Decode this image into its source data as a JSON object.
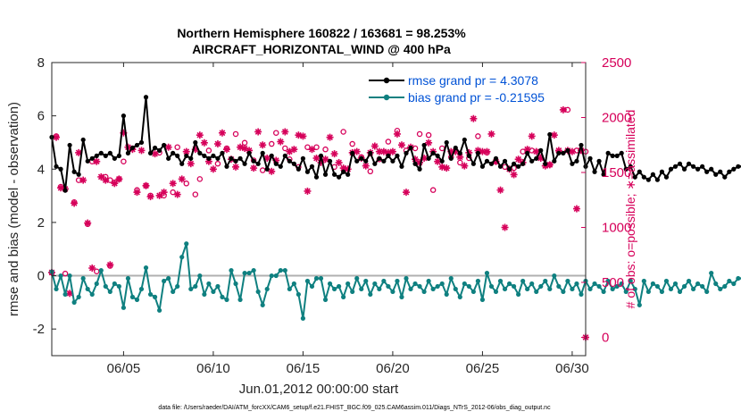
{
  "colors": {
    "rmse": "#000000",
    "bias": "#0f8080",
    "obs": "#d6005a",
    "legend_text": "#0052d6",
    "zero_line": "#b0b0b0"
  },
  "chart_data": {
    "type": "line",
    "title_line1": "Northern Hemisphere 160822 / 163681 = 98.253%",
    "title_line2": "AIRCRAFT_HORIZONTAL_WIND @ 400 hPa",
    "xlabel": "Jun.01,2012 00:00:00 start",
    "ylabel": "rmse and bias (model - observation)",
    "ylabel_right": "# of obs: o=possible; ∗=assimilated",
    "xlim": [
      1,
      30.75
    ],
    "ylim": [
      -3,
      8
    ],
    "ylim_right": [
      -166.7,
      2500
    ],
    "x_ticks": [
      5,
      10,
      15,
      20,
      25,
      30
    ],
    "x_tick_labels": [
      "06/05",
      "06/10",
      "06/15",
      "06/20",
      "06/25",
      "06/30"
    ],
    "y_ticks": [
      -2,
      0,
      2,
      4,
      6,
      8
    ],
    "y_tick_labels": [
      "-2",
      "0",
      "2",
      "4",
      "6",
      "8"
    ],
    "y_right_ticks": [
      0,
      500,
      1000,
      1500,
      2000,
      2500
    ],
    "y_right_tick_labels": [
      "0",
      "500",
      "1000",
      "1500",
      "2000",
      "2500"
    ],
    "x_start": 1.0,
    "x_step": 0.25,
    "series": [
      {
        "name": "rmse grand pr = 4.3078",
        "marker": "filled-circle",
        "color": "rmse",
        "values": [
          5.2,
          4.1,
          4.0,
          3.2,
          4.9,
          3.9,
          3.8,
          5.1,
          4.3,
          4.4,
          4.5,
          4.6,
          4.5,
          4.6,
          4.4,
          4.5,
          6.0,
          4.6,
          4.8,
          4.9,
          5.0,
          6.7,
          4.6,
          4.8,
          4.7,
          4.9,
          4.4,
          4.6,
          4.5,
          4.2,
          4.5,
          4.4,
          5.0,
          4.6,
          4.5,
          4.4,
          4.5,
          4.4,
          4.6,
          4.1,
          4.4,
          4.3,
          4.4,
          4.2,
          4.6,
          4.3,
          4.2,
          4.6,
          4.0,
          4.5,
          4.2,
          4.1,
          4.5,
          4.3,
          4.2,
          4.0,
          4.4,
          3.9,
          4.1,
          3.7,
          4.5,
          3.8,
          4.3,
          3.8,
          3.7,
          3.9,
          3.8,
          4.6,
          4.3,
          4.4,
          4.3,
          4.6,
          4.2,
          4.4,
          4.3,
          4.5,
          4.3,
          4.5,
          4.1,
          4.6,
          4.8,
          4.2,
          4.0,
          4.9,
          4.4,
          4.6,
          4.5,
          4.3,
          5.0,
          4.4,
          4.8,
          4.6,
          5.1,
          4.5,
          4.2,
          4.6,
          4.1,
          4.3,
          4.2,
          4.4,
          4.1,
          4.3,
          4.0,
          4.2,
          4.1,
          4.2,
          4.6,
          4.3,
          4.4,
          4.7,
          4.2,
          5.3,
          4.3,
          4.6,
          4.6,
          4.7,
          4.2,
          4.3,
          4.9,
          4.1,
          4.4,
          3.9,
          4.3,
          3.8,
          4.6,
          4.5,
          4.5,
          4.6,
          4.0,
          4.1,
          3.7,
          3.9,
          3.7,
          3.6,
          3.8,
          3.6,
          3.9,
          3.7,
          4.0,
          4.1,
          4.2,
          4.0,
          4.2,
          4.1,
          4.0,
          4.1,
          3.9,
          4.0,
          3.8,
          3.9,
          3.7,
          3.9,
          4.0,
          4.1,
          4.1
        ]
      },
      {
        "name": "bias grand pr = -0.21595",
        "marker": "filled-circle",
        "color": "bias",
        "values": [
          0.15,
          -0.5,
          0.0,
          -0.7,
          0.0,
          -1.0,
          -0.8,
          -0.1,
          -0.5,
          -0.7,
          -0.3,
          0.2,
          -0.4,
          -0.6,
          -0.3,
          -0.4,
          -1.2,
          -0.1,
          -0.8,
          -0.9,
          -0.5,
          0.3,
          -0.7,
          -0.8,
          -1.3,
          -0.2,
          -0.1,
          -0.6,
          -0.4,
          0.7,
          1.2,
          -0.5,
          -0.4,
          0.0,
          -0.7,
          -0.3,
          -0.6,
          -0.4,
          -0.8,
          -0.9,
          0.2,
          -0.3,
          -0.9,
          0.1,
          0.1,
          0.2,
          -0.6,
          -1.1,
          -0.5,
          0.0,
          0.0,
          0.2,
          0.2,
          -0.5,
          -0.3,
          -0.7,
          -1.6,
          -0.2,
          -0.4,
          -0.1,
          -0.1,
          -0.9,
          -0.3,
          -0.5,
          -0.4,
          -0.8,
          -0.3,
          -0.6,
          -0.1,
          -0.5,
          -0.2,
          -0.7,
          -0.3,
          -0.5,
          -0.2,
          -0.4,
          -0.6,
          -0.2,
          -0.8,
          -0.1,
          -0.5,
          -0.3,
          -0.4,
          -0.6,
          -0.2,
          -0.5,
          -0.4,
          -0.3,
          -0.7,
          -0.1,
          -0.5,
          -0.8,
          -0.3,
          -0.4,
          -0.6,
          -0.2,
          -0.9,
          0.1,
          -0.4,
          -0.6,
          -0.2,
          -0.5,
          -0.3,
          -0.4,
          -0.7,
          -0.2,
          -0.5,
          -0.3,
          -0.6,
          -0.4,
          -0.2,
          -0.5,
          0.0,
          -0.4,
          -0.6,
          -0.2,
          -0.5,
          -0.3,
          -0.7,
          -0.2,
          -0.5,
          -0.3,
          -0.4,
          -0.6,
          -0.2,
          -0.5,
          -0.4,
          -0.3,
          -0.6,
          -0.2,
          -0.5,
          -1.1,
          -0.2,
          -0.6,
          -0.3,
          -0.4,
          -0.6,
          -0.2,
          -0.5,
          -0.3,
          -0.6,
          -0.4,
          -0.2,
          -0.5,
          -0.3,
          -0.4,
          -0.6,
          0.1,
          -0.3,
          -0.5,
          -0.4,
          -0.2,
          -0.3,
          -0.1,
          -0.1
        ]
      }
    ],
    "obs_possible": [
      [
        1.0,
        590
      ],
      [
        1.75,
        580
      ],
      [
        1.5,
        1370
      ],
      [
        1.25,
        1830
      ],
      [
        2.25,
        1230
      ],
      [
        2.5,
        1430
      ],
      [
        3.0,
        1030
      ],
      [
        3.5,
        600
      ],
      [
        3.25,
        1600
      ],
      [
        4.0,
        1460
      ],
      [
        4.25,
        1430
      ],
      [
        4.5,
        1410
      ],
      [
        4.75,
        1440
      ],
      [
        4.25,
        650
      ],
      [
        5.0,
        1600
      ],
      [
        5.5,
        1720
      ],
      [
        5.75,
        1340
      ],
      [
        6.25,
        1380
      ],
      [
        6.5,
        1290
      ],
      [
        7.0,
        1680
      ],
      [
        7.25,
        1290
      ],
      [
        7.75,
        1320
      ],
      [
        8.0,
        1730
      ],
      [
        8.5,
        1400
      ],
      [
        9.0,
        1300
      ],
      [
        9.25,
        1440
      ],
      [
        9.75,
        1700
      ],
      [
        10.25,
        1580
      ],
      [
        10.75,
        1720
      ],
      [
        11.25,
        1850
      ],
      [
        11.75,
        1770
      ],
      [
        12.25,
        1610
      ],
      [
        12.75,
        1520
      ],
      [
        13.25,
        1760
      ],
      [
        13.5,
        1860
      ],
      [
        14.0,
        1720
      ],
      [
        14.25,
        1620
      ],
      [
        14.75,
        1550
      ],
      [
        15.25,
        1730
      ],
      [
        15.75,
        1730
      ],
      [
        16.25,
        1710
      ],
      [
        16.75,
        1550
      ],
      [
        17.25,
        1870
      ],
      [
        17.75,
        1760
      ],
      [
        18.25,
        1640
      ],
      [
        18.75,
        1510
      ],
      [
        19.25,
        1620
      ],
      [
        19.75,
        1780
      ],
      [
        20.25,
        1880
      ],
      [
        20.75,
        1700
      ],
      [
        21.25,
        1720
      ],
      [
        21.5,
        1850
      ],
      [
        22.0,
        1840
      ],
      [
        22.25,
        1340
      ],
      [
        22.75,
        1720
      ],
      [
        23.25,
        1640
      ],
      [
        23.75,
        1590
      ],
      [
        24.25,
        1630
      ],
      [
        24.75,
        1830
      ],
      [
        25.25,
        1680
      ],
      [
        25.75,
        1600
      ],
      [
        26.25,
        1550
      ],
      [
        26.75,
        1540
      ],
      [
        27.25,
        1690
      ],
      [
        27.75,
        1700
      ],
      [
        28.25,
        1640
      ],
      [
        28.75,
        1570
      ],
      [
        29.25,
        1690
      ],
      [
        29.75,
        2070
      ],
      [
        30.25,
        1700
      ],
      [
        30.5,
        1700
      ],
      [
        30.75,
        1690
      ]
    ],
    "obs_assimilated": [
      [
        1.0,
        590
      ],
      [
        1.25,
        1820
      ],
      [
        1.5,
        1360
      ],
      [
        1.75,
        1350
      ],
      [
        2.0,
        400
      ],
      [
        2.25,
        1220
      ],
      [
        2.5,
        1680
      ],
      [
        2.75,
        1430
      ],
      [
        3.0,
        1040
      ],
      [
        3.25,
        630
      ],
      [
        3.5,
        1600
      ],
      [
        3.75,
        1460
      ],
      [
        4.0,
        1430
      ],
      [
        4.25,
        660
      ],
      [
        4.5,
        1400
      ],
      [
        4.75,
        1440
      ],
      [
        5.0,
        1860
      ],
      [
        5.25,
        1730
      ],
      [
        5.5,
        1710
      ],
      [
        5.75,
        1320
      ],
      [
        6.0,
        1700
      ],
      [
        6.25,
        1380
      ],
      [
        6.5,
        1280
      ],
      [
        6.75,
        1670
      ],
      [
        7.0,
        1290
      ],
      [
        7.25,
        1320
      ],
      [
        7.5,
        1730
      ],
      [
        7.75,
        1400
      ],
      [
        8.0,
        1300
      ],
      [
        8.25,
        1440
      ],
      [
        8.5,
        1690
      ],
      [
        8.75,
        1580
      ],
      [
        9.0,
        1710
      ],
      [
        9.25,
        1840
      ],
      [
        9.5,
        1770
      ],
      [
        9.75,
        1600
      ],
      [
        10.0,
        1530
      ],
      [
        10.25,
        1760
      ],
      [
        10.5,
        1860
      ],
      [
        10.75,
        1710
      ],
      [
        11.0,
        1620
      ],
      [
        11.25,
        1550
      ],
      [
        11.5,
        1730
      ],
      [
        11.75,
        1720
      ],
      [
        12.0,
        1700
      ],
      [
        12.25,
        1540
      ],
      [
        12.5,
        1870
      ],
      [
        12.75,
        1750
      ],
      [
        13.0,
        1630
      ],
      [
        13.25,
        1510
      ],
      [
        13.5,
        1610
      ],
      [
        13.75,
        1780
      ],
      [
        14.0,
        1870
      ],
      [
        14.25,
        1690
      ],
      [
        14.5,
        1710
      ],
      [
        14.75,
        1840
      ],
      [
        15.0,
        1830
      ],
      [
        15.25,
        1330
      ],
      [
        15.5,
        1710
      ],
      [
        15.75,
        1630
      ],
      [
        16.0,
        1590
      ],
      [
        16.25,
        1620
      ],
      [
        16.5,
        1820
      ],
      [
        16.75,
        1670
      ],
      [
        17.0,
        1590
      ],
      [
        17.25,
        1540
      ],
      [
        17.5,
        1530
      ],
      [
        17.75,
        1680
      ],
      [
        18.0,
        1690
      ],
      [
        18.25,
        1630
      ],
      [
        18.5,
        1560
      ],
      [
        18.75,
        1680
      ],
      [
        19.0,
        1740
      ],
      [
        19.25,
        1690
      ],
      [
        19.5,
        1690
      ],
      [
        19.75,
        1680
      ],
      [
        20.0,
        1690
      ],
      [
        20.25,
        1850
      ],
      [
        20.5,
        1750
      ],
      [
        20.75,
        1320
      ],
      [
        21.0,
        1730
      ],
      [
        21.25,
        1620
      ],
      [
        21.5,
        1590
      ],
      [
        21.75,
        1630
      ],
      [
        22.0,
        1770
      ],
      [
        22.25,
        1690
      ],
      [
        22.5,
        1600
      ],
      [
        22.75,
        1550
      ],
      [
        23.0,
        1540
      ],
      [
        23.25,
        1690
      ],
      [
        23.5,
        1690
      ],
      [
        23.75,
        1640
      ],
      [
        24.0,
        1560
      ],
      [
        24.25,
        1680
      ],
      [
        24.5,
        1990
      ],
      [
        24.75,
        1700
      ],
      [
        25.0,
        1690
      ],
      [
        25.25,
        1690
      ],
      [
        25.5,
        1850
      ],
      [
        25.75,
        1600
      ],
      [
        26.0,
        1340
      ],
      [
        26.25,
        1000
      ],
      [
        26.5,
        1530
      ],
      [
        26.75,
        1480
      ],
      [
        27.0,
        1620
      ],
      [
        27.25,
        1590
      ],
      [
        27.5,
        1710
      ],
      [
        27.75,
        1830
      ],
      [
        28.0,
        1690
      ],
      [
        28.25,
        1630
      ],
      [
        28.5,
        1560
      ],
      [
        28.75,
        1570
      ],
      [
        29.0,
        1840
      ],
      [
        29.25,
        1700
      ],
      [
        29.5,
        2070
      ],
      [
        29.75,
        1700
      ],
      [
        30.0,
        1690
      ],
      [
        30.25,
        1170
      ],
      [
        30.5,
        1700
      ],
      [
        30.75,
        0
      ]
    ],
    "legend": [
      "rmse grand pr = 4.3078",
      "bias grand pr = -0.21595"
    ],
    "legend_location": "top-right"
  },
  "footnote": "data file: /Users/raeder/DAI/ATM_forcXX/CAM6_setup/f.e21.FHIST_BGC.f09_025.CAM6assim.011/Diags_NTrS_2012-06/obs_diag_output.nc"
}
